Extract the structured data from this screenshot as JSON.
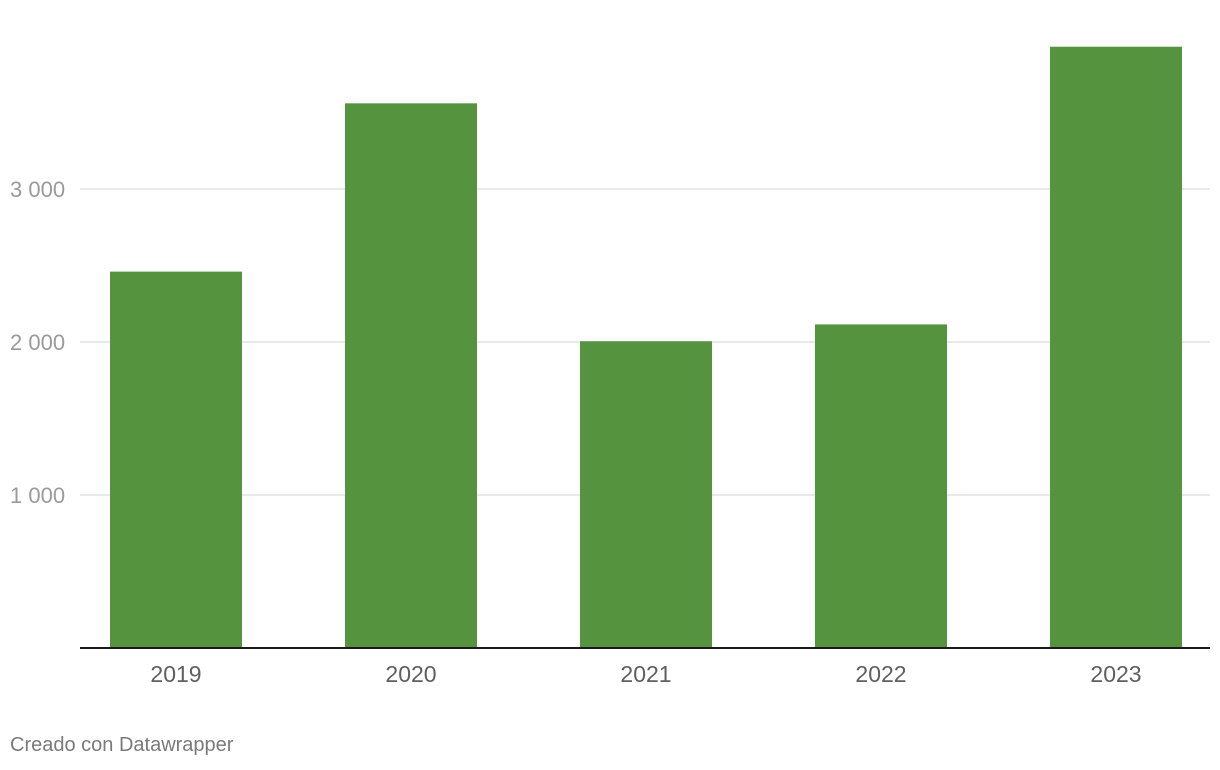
{
  "chart_data": {
    "type": "bar",
    "categories": [
      "2019",
      "2020",
      "2021",
      "2022",
      "2023"
    ],
    "values": [
      2460,
      3560,
      2005,
      2115,
      3930
    ],
    "ylim": [
      0,
      4000
    ],
    "yticks": [
      1000,
      2000,
      3000
    ],
    "ytick_labels": [
      "1 000",
      "2 000",
      "3 000"
    ],
    "bar_color": "#55933f",
    "grid": true,
    "legend": "none"
  },
  "footer": {
    "credit": "Creado con Datawrapper"
  }
}
